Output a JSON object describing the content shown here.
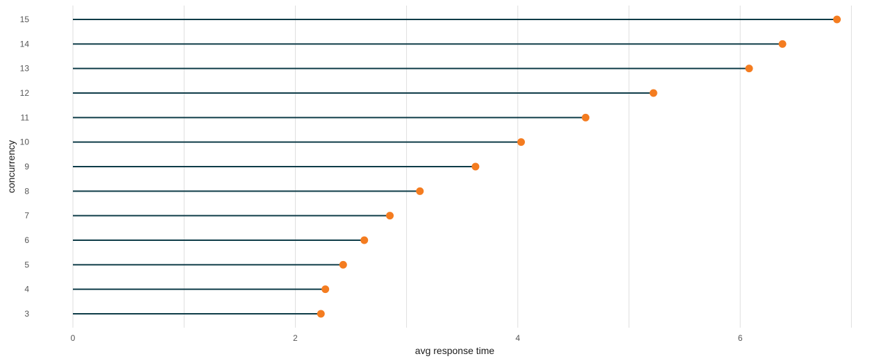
{
  "chart_data": {
    "type": "lollipop",
    "orientation": "horizontal",
    "title": "",
    "xlabel": "avg response time",
    "ylabel": "concurrency",
    "xlim": [
      0,
      7
    ],
    "x_ticks": [
      0,
      2,
      4,
      6
    ],
    "x_gridlines": [
      0,
      1,
      2,
      3,
      4,
      5,
      6,
      7
    ],
    "grid": "vertical",
    "legend": "none",
    "categories": [
      "3",
      "4",
      "5",
      "6",
      "7",
      "8",
      "9",
      "10",
      "11",
      "12",
      "13",
      "14",
      "15"
    ],
    "values": [
      2.23,
      2.27,
      2.43,
      2.62,
      2.85,
      3.12,
      3.62,
      4.03,
      4.61,
      5.22,
      6.08,
      6.38,
      6.87
    ],
    "colors": {
      "stem": "#0d3b47",
      "point": "#f47c20",
      "grid": "#dedede",
      "tick_text": "#555555",
      "axis_title": "#1a1a1a"
    }
  }
}
